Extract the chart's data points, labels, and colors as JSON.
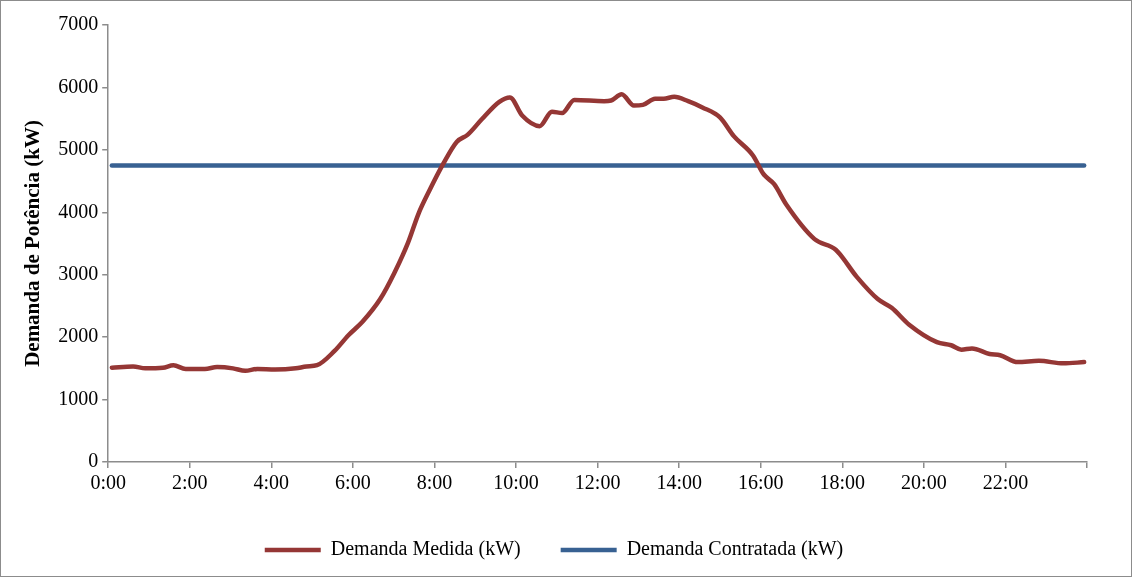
{
  "chart_data": {
    "type": "line",
    "ylabel": "Demanda de Potência (kW)",
    "xlim": [
      0,
      24
    ],
    "xticks": [
      {
        "value": 0,
        "label": "0:00"
      },
      {
        "value": 2,
        "label": "2:00"
      },
      {
        "value": 4,
        "label": "4:00"
      },
      {
        "value": 6,
        "label": "6:00"
      },
      {
        "value": 8,
        "label": "8:00"
      },
      {
        "value": 10,
        "label": "10:00"
      },
      {
        "value": 12,
        "label": "12:00"
      },
      {
        "value": 14,
        "label": "14:00"
      },
      {
        "value": 16,
        "label": "16:00"
      },
      {
        "value": 18,
        "label": "18:00"
      },
      {
        "value": 20,
        "label": "20:00"
      },
      {
        "value": 22,
        "label": "22:00"
      },
      {
        "value": 24,
        "label": null
      }
    ],
    "ylim": [
      0,
      7000
    ],
    "yticks": [
      0,
      1000,
      2000,
      3000,
      4000,
      5000,
      6000,
      7000
    ],
    "legend": "bottom",
    "series": [
      {
        "name": "Demanda Medida (kW)",
        "color": "#953735",
        "x": [
          0.09,
          0.61,
          0.91,
          1.34,
          1.6,
          1.9,
          2.37,
          2.67,
          3.06,
          3.36,
          3.66,
          4.09,
          4.6,
          4.86,
          5.12,
          5.55,
          5.89,
          6.24,
          6.67,
          7.01,
          7.35,
          7.61,
          7.87,
          8.21,
          8.55,
          8.81,
          9.16,
          9.59,
          9.85,
          10.15,
          10.58,
          10.88,
          11.13,
          11.43,
          12.16,
          12.33,
          12.59,
          12.89,
          13.11,
          13.41,
          13.62,
          13.88,
          14.22,
          14.57,
          15.0,
          15.34,
          15.81,
          16.07,
          16.33,
          16.63,
          17.32,
          17.84,
          18.35,
          18.87,
          19.21,
          19.64,
          20.32,
          20.67,
          20.92,
          21.18,
          21.61,
          21.87,
          22.3,
          22.82,
          23.42,
          23.93
        ],
        "values": [
          1510,
          1530,
          1500,
          1510,
          1550,
          1490,
          1490,
          1520,
          1500,
          1460,
          1490,
          1480,
          1500,
          1530,
          1550,
          1780,
          2030,
          2250,
          2610,
          3020,
          3510,
          3980,
          4340,
          4770,
          5130,
          5240,
          5490,
          5770,
          5840,
          5550,
          5380,
          5610,
          5590,
          5800,
          5780,
          5790,
          5890,
          5710,
          5720,
          5820,
          5820,
          5850,
          5780,
          5680,
          5520,
          5220,
          4910,
          4610,
          4450,
          4120,
          3570,
          3400,
          2970,
          2610,
          2470,
          2200,
          1920,
          1870,
          1800,
          1820,
          1730,
          1710,
          1600,
          1620,
          1580,
          1600
        ]
      },
      {
        "name": "Demanda Contratada (kW)",
        "color": "#386192",
        "x": [
          0.09,
          23.93
        ],
        "values": [
          4750,
          4750
        ]
      }
    ]
  }
}
